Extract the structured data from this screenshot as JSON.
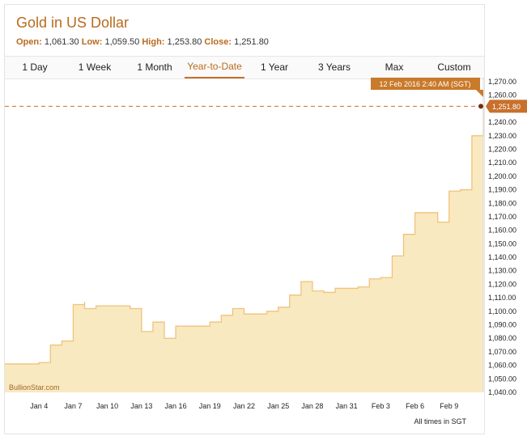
{
  "title": "Gold in US Dollar",
  "ohlc": {
    "open_label": "Open:",
    "open": "1,061.30",
    "low_label": "Low:",
    "low": "1,059.50",
    "high_label": "High:",
    "high": "1,253.80",
    "close_label": "Close:",
    "close": "1,251.80"
  },
  "tabs": [
    {
      "label": "1 Day",
      "active": false
    },
    {
      "label": "1 Week",
      "active": false
    },
    {
      "label": "1 Month",
      "active": false
    },
    {
      "label": "Year-to-Date",
      "active": true
    },
    {
      "label": "1 Year",
      "active": false
    },
    {
      "label": "3 Years",
      "active": false
    },
    {
      "label": "Max",
      "active": false
    },
    {
      "label": "Custom",
      "active": false
    }
  ],
  "tooltip": "12 Feb 2016 2:40 AM (SGT)",
  "last_price_label": "1,251.80",
  "watermark": "BullionStar.com",
  "footer_note": "All times in SGT",
  "colors": {
    "accent": "#c8702c",
    "area_fill": "#f9e9c0",
    "line": "#f0c27a"
  },
  "chart_data": {
    "type": "area",
    "x_tick_labels": [
      "Jan 4",
      "Jan 7",
      "Jan 10",
      "Jan 13",
      "Jan 16",
      "Jan 19",
      "Jan 22",
      "Jan 25",
      "Jan 28",
      "Jan 31",
      "Feb 3",
      "Feb 6",
      "Feb 9"
    ],
    "y_tick_labels": [
      "1,040.00",
      "1,050.00",
      "1,060.00",
      "1,070.00",
      "1,080.00",
      "1,090.00",
      "1,100.00",
      "1,110.00",
      "1,120.00",
      "1,130.00",
      "1,140.00",
      "1,150.00",
      "1,160.00",
      "1,170.00",
      "1,180.00",
      "1,190.00",
      "1,200.00",
      "1,210.00",
      "1,220.00",
      "1,230.00",
      "1,240.00",
      "1,250.00",
      "1,260.00",
      "1,270.00"
    ],
    "ylim": [
      1040,
      1273
    ],
    "x_range": [
      "Jan 1",
      "Feb 12"
    ],
    "last_value": 1251.8,
    "series": [
      {
        "x": [
          "Jan 1",
          "Jan 2",
          "Jan 3",
          "Jan 4",
          "Jan 5",
          "Jan 6",
          "Jan 7",
          "Jan 7",
          "Jan 8",
          "Jan 8",
          "Jan 9",
          "Jan 10",
          "Jan 11",
          "Jan 12",
          "Jan 13",
          "Jan 14",
          "Jan 15",
          "Jan 16",
          "Jan 17",
          "Jan 18",
          "Jan 19",
          "Jan 20",
          "Jan 21",
          "Jan 22",
          "Jan 23",
          "Jan 24",
          "Jan 25",
          "Jan 26",
          "Jan 27",
          "Jan 28",
          "Jan 29",
          "Jan 30",
          "Jan 31",
          "Feb 1",
          "Feb 2",
          "Feb 3",
          "Feb 4",
          "Feb 5",
          "Feb 6",
          "Feb 6",
          "Feb 7",
          "Feb 8",
          "Feb 9",
          "Feb 10",
          "Feb 11",
          "Feb 11",
          "Feb 12"
        ],
        "y": [
          1061,
          1061,
          1061,
          1062,
          1075,
          1078,
          1092,
          1105,
          1107,
          1102,
          1104,
          1104,
          1104,
          1102,
          1085,
          1092,
          1080,
          1089,
          1089,
          1089,
          1092,
          1097,
          1102,
          1098,
          1098,
          1100,
          1103,
          1112,
          1122,
          1115,
          1114,
          1117,
          1117,
          1118,
          1124,
          1125,
          1141,
          1157,
          1160,
          1173,
          1173,
          1166,
          1189,
          1190,
          1195,
          1230,
          1251.8
        ]
      }
    ]
  }
}
